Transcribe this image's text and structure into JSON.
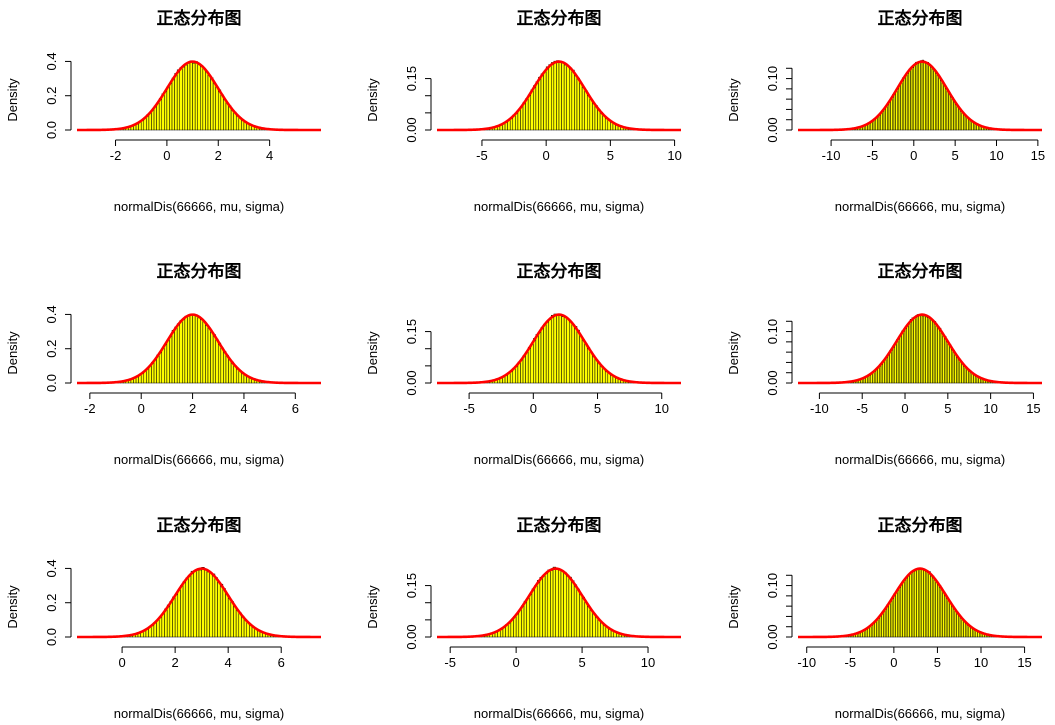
{
  "chart_data": [
    {
      "type": "bar",
      "title": "正态分布图",
      "xlabel": "normalDis(66666, mu, sigma)",
      "ylabel": "Density",
      "sample_size": 66666,
      "mu": 1,
      "sigma": 1,
      "xlim": [
        -3.5,
        6
      ],
      "ylim": [
        0,
        0.42
      ],
      "xticks": [
        -2,
        0,
        2,
        4
      ],
      "yticks": [
        0.0,
        0.2,
        0.4
      ],
      "ytick_labels": [
        "0.0",
        "0.2",
        "0.4"
      ],
      "bin_width": 0.1,
      "bar_color": "#ffff00",
      "curve_color": "#ff0000"
    },
    {
      "type": "bar",
      "title": "正态分布图",
      "xlabel": "normalDis(66666, mu, sigma)",
      "ylabel": "Density",
      "sample_size": 66666,
      "mu": 1,
      "sigma": 2,
      "xlim": [
        -8.5,
        10.5
      ],
      "ylim": [
        0,
        0.21
      ],
      "xticks": [
        -5,
        0,
        5,
        10
      ],
      "yticks": [
        0.0,
        0.05,
        0.1,
        0.15
      ],
      "ytick_labels": [
        "0.00",
        "",
        "",
        "0.15"
      ],
      "bin_width": 0.2,
      "bar_color": "#ffff00",
      "curve_color": "#ff0000"
    },
    {
      "type": "bar",
      "title": "正态分布图",
      "xlabel": "normalDis(66666, mu, sigma)",
      "ylabel": "Density",
      "sample_size": 66666,
      "mu": 1,
      "sigma": 3,
      "xlim": [
        -14,
        15.5
      ],
      "ylim": [
        0,
        0.14
      ],
      "xticks": [
        -10,
        -5,
        0,
        5,
        10,
        15
      ],
      "yticks": [
        0.0,
        0.02,
        0.04,
        0.06,
        0.08,
        0.1,
        0.12
      ],
      "ytick_labels": [
        "0.00",
        "",
        "",
        "",
        "",
        "0.10",
        ""
      ],
      "bin_width": 0.2,
      "bar_color": "#ffff00",
      "curve_color": "#ff0000"
    },
    {
      "type": "bar",
      "title": "正态分布图",
      "xlabel": "normalDis(66666, mu, sigma)",
      "ylabel": "Density",
      "sample_size": 66666,
      "mu": 2,
      "sigma": 1,
      "xlim": [
        -2.5,
        7
      ],
      "ylim": [
        0,
        0.42
      ],
      "xticks": [
        -2,
        0,
        2,
        4,
        6
      ],
      "yticks": [
        0.0,
        0.2,
        0.4
      ],
      "ytick_labels": [
        "0.0",
        "0.2",
        "0.4"
      ],
      "bin_width": 0.1,
      "bar_color": "#ffff00",
      "curve_color": "#ff0000"
    },
    {
      "type": "bar",
      "title": "正态分布图",
      "xlabel": "normalDis(66666, mu, sigma)",
      "ylabel": "Density",
      "sample_size": 66666,
      "mu": 2,
      "sigma": 2,
      "xlim": [
        -7.5,
        11.5
      ],
      "ylim": [
        0,
        0.21
      ],
      "xticks": [
        -5,
        0,
        5,
        10
      ],
      "yticks": [
        0.0,
        0.05,
        0.1,
        0.15
      ],
      "ytick_labels": [
        "0.00",
        "",
        "",
        "0.15"
      ],
      "bin_width": 0.2,
      "bar_color": "#ffff00",
      "curve_color": "#ff0000"
    },
    {
      "type": "bar",
      "title": "正态分布图",
      "xlabel": "normalDis(66666, mu, sigma)",
      "ylabel": "Density",
      "sample_size": 66666,
      "mu": 2,
      "sigma": 3,
      "xlim": [
        -12.5,
        16
      ],
      "ylim": [
        0,
        0.14
      ],
      "xticks": [
        -10,
        -5,
        0,
        5,
        10,
        15
      ],
      "yticks": [
        0.0,
        0.02,
        0.04,
        0.06,
        0.08,
        0.1,
        0.12
      ],
      "ytick_labels": [
        "0.00",
        "",
        "",
        "",
        "",
        "0.10",
        ""
      ],
      "bin_width": 0.2,
      "bar_color": "#ffff00",
      "curve_color": "#ff0000"
    },
    {
      "type": "bar",
      "title": "正态分布图",
      "xlabel": "normalDis(66666, mu, sigma)",
      "ylabel": "Density",
      "sample_size": 66666,
      "mu": 3,
      "sigma": 1,
      "xlim": [
        -1.7,
        7.5
      ],
      "ylim": [
        0,
        0.42
      ],
      "xticks": [
        0,
        2,
        4,
        6
      ],
      "yticks": [
        0.0,
        0.2,
        0.4
      ],
      "ytick_labels": [
        "0.0",
        "0.2",
        "0.4"
      ],
      "bin_width": 0.1,
      "bar_color": "#ffff00",
      "curve_color": "#ff0000"
    },
    {
      "type": "bar",
      "title": "正态分布图",
      "xlabel": "normalDis(66666, mu, sigma)",
      "ylabel": "Density",
      "sample_size": 66666,
      "mu": 3,
      "sigma": 2,
      "xlim": [
        -6,
        12.5
      ],
      "ylim": [
        0,
        0.21
      ],
      "xticks": [
        -5,
        0,
        5,
        10
      ],
      "yticks": [
        0.0,
        0.05,
        0.1,
        0.15
      ],
      "ytick_labels": [
        "0.00",
        "",
        "",
        "0.15"
      ],
      "bin_width": 0.2,
      "bar_color": "#ffff00",
      "curve_color": "#ff0000"
    },
    {
      "type": "bar",
      "title": "正态分布图",
      "xlabel": "normalDis(66666, mu, sigma)",
      "ylabel": "Density",
      "sample_size": 66666,
      "mu": 3,
      "sigma": 3,
      "xlim": [
        -11,
        17
      ],
      "ylim": [
        0,
        0.14
      ],
      "xticks": [
        -10,
        -5,
        0,
        5,
        10,
        15
      ],
      "yticks": [
        0.0,
        0.02,
        0.04,
        0.06,
        0.08,
        0.1,
        0.12
      ],
      "ytick_labels": [
        "0.00",
        "",
        "",
        "",
        "",
        "0.10",
        ""
      ],
      "bin_width": 0.2,
      "bar_color": "#ffff00",
      "curve_color": "#ff0000"
    }
  ]
}
